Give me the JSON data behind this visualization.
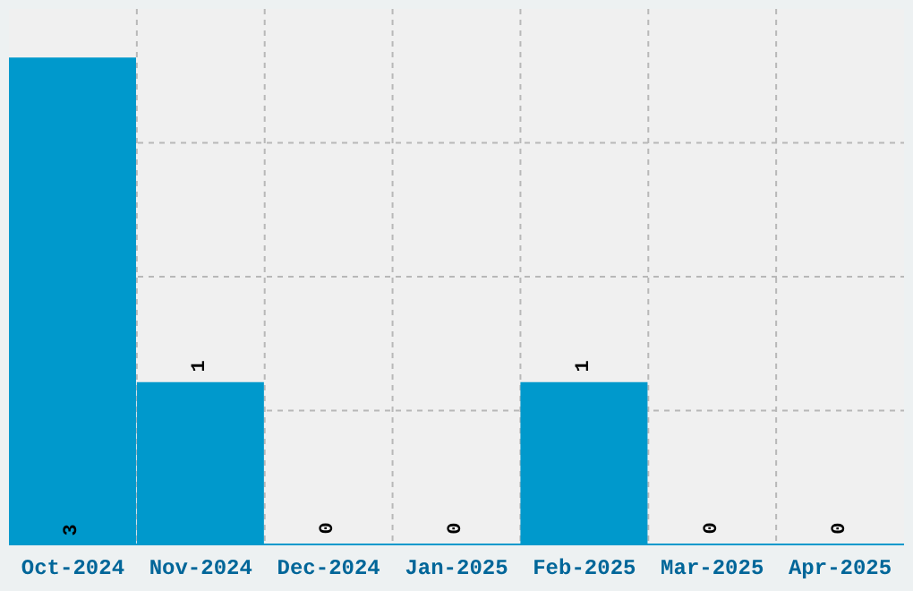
{
  "chart_data": {
    "type": "bar",
    "categories": [
      "Oct-2024",
      "Nov-2024",
      "Dec-2024",
      "Jan-2025",
      "Feb-2025",
      "Mar-2025",
      "Apr-2025"
    ],
    "values": [
      3,
      1,
      0,
      0,
      1,
      0,
      0
    ],
    "color": "#0099cc",
    "data_labels": true,
    "grid": true,
    "tick_labels": "x",
    "ylim": [
      0,
      3.3
    ]
  }
}
